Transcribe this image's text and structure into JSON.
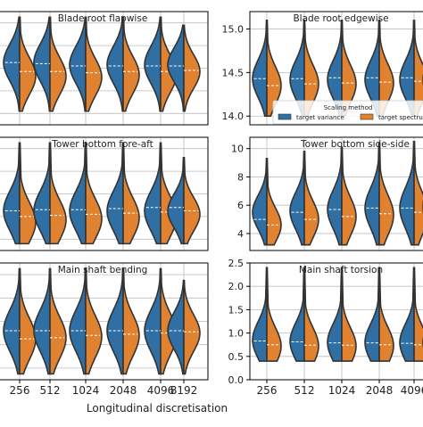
{
  "xlabel": "Longitudinal discretisation",
  "categories": [
    "256",
    "512",
    "1024",
    "2048",
    "4096",
    "8192"
  ],
  "colors": {
    "target_variance": "#2f6fa3",
    "target_spectrum": "#e0822f",
    "outline": "#333333",
    "grid": "#bdbdbd"
  },
  "legend": {
    "title": "Scaling method",
    "items": [
      {
        "label": "target variance",
        "color": "#2f6fa3"
      },
      {
        "label": "target spectrum",
        "color": "#e0822f"
      }
    ],
    "placement": "lower-right of Blade root edgewise panel"
  },
  "chart_data": [
    {
      "type": "violin-split",
      "panel": "top-left",
      "title": "Blade root flapwise",
      "ylim": [
        0.0,
        1.0
      ],
      "yticks_visible": false,
      "grid": true,
      "series": [
        {
          "name": "target variance",
          "min": [
            0.12,
            0.12,
            0.12,
            0.12,
            0.12,
            0.12
          ],
          "max": [
            0.95,
            0.95,
            0.95,
            0.95,
            0.95,
            0.88
          ],
          "center": [
            0.55,
            0.55,
            0.53,
            0.53,
            0.53,
            0.53
          ],
          "median": [
            0.55,
            0.54,
            0.52,
            0.52,
            0.52,
            0.52
          ]
        },
        {
          "name": "target spectrum",
          "min": [
            0.12,
            0.12,
            0.12,
            0.12,
            0.12,
            0.12
          ],
          "max": [
            0.95,
            0.95,
            0.95,
            0.95,
            0.95,
            0.88
          ],
          "center": [
            0.43,
            0.43,
            0.42,
            0.44,
            0.45,
            0.47
          ],
          "median": [
            0.47,
            0.47,
            0.46,
            0.47,
            0.47,
            0.48
          ]
        }
      ]
    },
    {
      "type": "violin-split",
      "panel": "top-right",
      "title": "Blade root edgewise",
      "ylim": [
        13.9,
        15.2
      ],
      "yticks": [
        14.0,
        14.5,
        15.0
      ],
      "ytick_labels": [
        "14.0",
        "14.5",
        "15.0"
      ],
      "grid": true,
      "series": [
        {
          "name": "target variance",
          "min": [
            14.0,
            14.0,
            14.0,
            14.0,
            14.0,
            14.0
          ],
          "max": [
            15.1,
            15.1,
            15.1,
            15.1,
            15.1,
            15.1
          ],
          "center": [
            14.43,
            14.42,
            14.42,
            14.42,
            14.42,
            14.42
          ],
          "median": [
            14.43,
            14.43,
            14.44,
            14.44,
            14.44,
            14.44
          ]
        },
        {
          "name": "target spectrum",
          "min": [
            14.0,
            14.0,
            14.0,
            14.0,
            14.0,
            14.0
          ],
          "max": [
            15.1,
            15.1,
            15.1,
            15.1,
            15.1,
            15.1
          ],
          "center": [
            14.35,
            14.37,
            14.37,
            14.38,
            14.38,
            14.38
          ],
          "median": [
            14.35,
            14.37,
            14.38,
            14.39,
            14.4,
            14.41
          ]
        }
      ]
    },
    {
      "type": "violin-split",
      "panel": "middle-left",
      "title": "Tower bottom fore-aft",
      "ylim": [
        0.0,
        1.0
      ],
      "yticks_visible": false,
      "grid": true,
      "series": [
        {
          "name": "target variance",
          "min": [
            0.06,
            0.06,
            0.06,
            0.06,
            0.06,
            0.06
          ],
          "max": [
            0.95,
            0.95,
            0.95,
            0.95,
            0.95,
            0.82
          ],
          "center": [
            0.35,
            0.35,
            0.35,
            0.35,
            0.35,
            0.35
          ],
          "median": [
            0.35,
            0.36,
            0.36,
            0.37,
            0.38,
            0.38
          ]
        },
        {
          "name": "target spectrum",
          "min": [
            0.06,
            0.06,
            0.06,
            0.06,
            0.06,
            0.06
          ],
          "max": [
            0.95,
            0.95,
            0.95,
            0.95,
            0.95,
            0.82
          ],
          "center": [
            0.25,
            0.27,
            0.28,
            0.29,
            0.3,
            0.32
          ],
          "median": [
            0.3,
            0.31,
            0.32,
            0.33,
            0.34,
            0.35
          ]
        }
      ]
    },
    {
      "type": "violin-split",
      "panel": "middle-right",
      "title": "Tower bottom side-side",
      "ylim": [
        2.8,
        10.8
      ],
      "yticks": [
        4,
        6,
        8,
        10
      ],
      "ytick_labels": [
        "4",
        "6",
        "8",
        "10"
      ],
      "grid": true,
      "series": [
        {
          "name": "target variance",
          "min": [
            3.2,
            3.2,
            3.2,
            3.2,
            3.2,
            3.2
          ],
          "max": [
            9.3,
            9.8,
            10.1,
            10.4,
            10.5,
            10.6
          ],
          "center": [
            5.5,
            5.6,
            5.7,
            5.8,
            5.8,
            5.9
          ],
          "median": [
            5.0,
            5.5,
            5.7,
            5.8,
            5.8,
            5.9
          ]
        },
        {
          "name": "target spectrum",
          "min": [
            3.2,
            3.2,
            3.2,
            3.2,
            3.2,
            3.2
          ],
          "max": [
            9.3,
            9.8,
            10.1,
            10.4,
            10.5,
            10.6
          ],
          "center": [
            4.6,
            5.0,
            5.2,
            5.3,
            5.4,
            5.5
          ],
          "median": [
            4.6,
            5.0,
            5.2,
            5.4,
            5.5,
            5.6
          ]
        }
      ]
    },
    {
      "type": "violin-split",
      "panel": "bottom-left",
      "title": "Main shaft bending",
      "ylim": [
        0.0,
        1.0
      ],
      "yticks_visible": false,
      "grid": true,
      "series": [
        {
          "name": "target variance",
          "min": [
            0.05,
            0.05,
            0.05,
            0.05,
            0.05,
            0.05
          ],
          "max": [
            0.95,
            0.95,
            0.95,
            0.95,
            0.95,
            0.85
          ],
          "center": [
            0.42,
            0.42,
            0.42,
            0.42,
            0.42,
            0.42
          ],
          "median": [
            0.42,
            0.42,
            0.42,
            0.42,
            0.42,
            0.42
          ]
        },
        {
          "name": "target spectrum",
          "min": [
            0.05,
            0.05,
            0.05,
            0.05,
            0.05,
            0.05
          ],
          "max": [
            0.95,
            0.95,
            0.95,
            0.95,
            0.95,
            0.85
          ],
          "center": [
            0.35,
            0.36,
            0.37,
            0.38,
            0.39,
            0.4
          ],
          "median": [
            0.35,
            0.36,
            0.38,
            0.39,
            0.4,
            0.41
          ]
        }
      ]
    },
    {
      "type": "violin-split",
      "panel": "bottom-right",
      "title": "Main shaft torsion",
      "ylim": [
        0.0,
        2.5
      ],
      "yticks": [
        0.0,
        0.5,
        1.0,
        1.5,
        2.0,
        2.5
      ],
      "ytick_labels": [
        "0.0",
        "0.5",
        "1.0",
        "1.5",
        "2.0",
        "2.5"
      ],
      "grid": true,
      "series": [
        {
          "name": "target variance",
          "min": [
            0.4,
            0.4,
            0.4,
            0.4,
            0.4,
            0.4
          ],
          "max": [
            2.4,
            2.4,
            2.4,
            2.4,
            2.4,
            2.4
          ],
          "center": [
            0.85,
            0.82,
            0.8,
            0.8,
            0.8,
            0.8
          ],
          "median": [
            0.83,
            0.81,
            0.79,
            0.79,
            0.78,
            0.78
          ]
        },
        {
          "name": "target spectrum",
          "min": [
            0.4,
            0.4,
            0.4,
            0.4,
            0.4,
            0.4
          ],
          "max": [
            2.4,
            2.4,
            2.4,
            2.4,
            2.4,
            2.4
          ],
          "center": [
            0.72,
            0.72,
            0.72,
            0.73,
            0.74,
            0.75
          ],
          "median": [
            0.75,
            0.74,
            0.74,
            0.75,
            0.75,
            0.76
          ]
        }
      ]
    }
  ]
}
